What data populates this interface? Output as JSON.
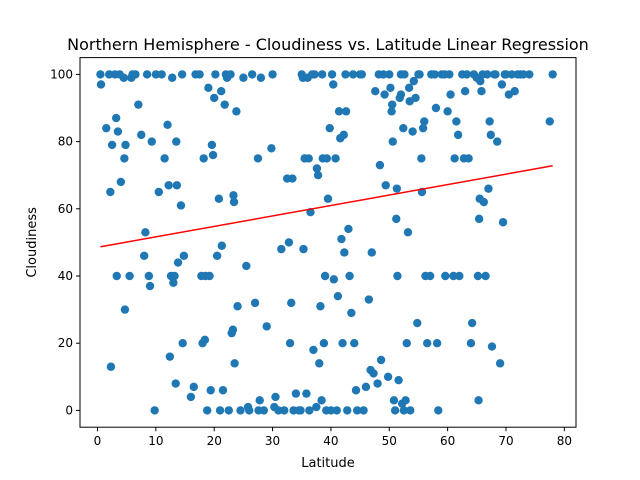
{
  "chart_data": {
    "type": "scatter",
    "title": "Northern Hemisphere - Cloudiness vs. Latitude Linear Regression",
    "xlabel": "Latitude",
    "ylabel": "Cloudiness",
    "xlim": [
      -3,
      82
    ],
    "ylim": [
      -5,
      105
    ],
    "xticks": [
      0,
      10,
      20,
      30,
      40,
      50,
      60,
      70,
      80
    ],
    "yticks": [
      0,
      20,
      40,
      60,
      80,
      100
    ],
    "grid": false,
    "colors": {
      "points": "#1f77b4",
      "regression": "#ff0000"
    },
    "regression": {
      "x": [
        0.5,
        78
      ],
      "y": [
        48.7,
        72.8
      ]
    },
    "points": [
      [
        0.5,
        100
      ],
      [
        0.6,
        97
      ],
      [
        1.5,
        84
      ],
      [
        2,
        100
      ],
      [
        2.2,
        65
      ],
      [
        2.3,
        13
      ],
      [
        2.5,
        79
      ],
      [
        3,
        100
      ],
      [
        3.2,
        87
      ],
      [
        3.3,
        40
      ],
      [
        3.5,
        83
      ],
      [
        3.8,
        100
      ],
      [
        4,
        68
      ],
      [
        4.5,
        99
      ],
      [
        4.6,
        75
      ],
      [
        4.7,
        30
      ],
      [
        4.8,
        79
      ],
      [
        5.5,
        40
      ],
      [
        5.8,
        99
      ],
      [
        6,
        100
      ],
      [
        6.5,
        100
      ],
      [
        7,
        91
      ],
      [
        7.5,
        82
      ],
      [
        8,
        46
      ],
      [
        8.2,
        53
      ],
      [
        8.5,
        100
      ],
      [
        8.8,
        40
      ],
      [
        9,
        37
      ],
      [
        9.3,
        80
      ],
      [
        9.8,
        0
      ],
      [
        10,
        100
      ],
      [
        10.5,
        65
      ],
      [
        11,
        100
      ],
      [
        11.5,
        75
      ],
      [
        12,
        85
      ],
      [
        12.2,
        67
      ],
      [
        12.4,
        16
      ],
      [
        12.6,
        40
      ],
      [
        12.8,
        99
      ],
      [
        13,
        38
      ],
      [
        13.2,
        40
      ],
      [
        13.4,
        8
      ],
      [
        13.5,
        80
      ],
      [
        13.6,
        67
      ],
      [
        13.8,
        44
      ],
      [
        14.3,
        61
      ],
      [
        14.5,
        100
      ],
      [
        14.8,
        46
      ],
      [
        14.6,
        20
      ],
      [
        16,
        4
      ],
      [
        16.5,
        7
      ],
      [
        16.8,
        100
      ],
      [
        17.5,
        100
      ],
      [
        17.8,
        40
      ],
      [
        18,
        20
      ],
      [
        18.2,
        75
      ],
      [
        18.4,
        21
      ],
      [
        18.5,
        40
      ],
      [
        18.8,
        0
      ],
      [
        19,
        96
      ],
      [
        19.2,
        40
      ],
      [
        19.4,
        6
      ],
      [
        19.6,
        79
      ],
      [
        19.8,
        76
      ],
      [
        20,
        93
      ],
      [
        20.2,
        100
      ],
      [
        20.5,
        46
      ],
      [
        20.8,
        63
      ],
      [
        21,
        0
      ],
      [
        21.2,
        95
      ],
      [
        21.3,
        49
      ],
      [
        21.5,
        6
      ],
      [
        21.8,
        91
      ],
      [
        22,
        100
      ],
      [
        22.2,
        99
      ],
      [
        22.5,
        0
      ],
      [
        22.8,
        100
      ],
      [
        23,
        23
      ],
      [
        23.2,
        24
      ],
      [
        23.3,
        64
      ],
      [
        23.4,
        62
      ],
      [
        23.5,
        14
      ],
      [
        23.8,
        89
      ],
      [
        24,
        31
      ],
      [
        24.5,
        0
      ],
      [
        25,
        99
      ],
      [
        25.5,
        43
      ],
      [
        25.8,
        1
      ],
      [
        26,
        0
      ],
      [
        26.5,
        100
      ],
      [
        27,
        32
      ],
      [
        27.5,
        75
      ],
      [
        27.6,
        0
      ],
      [
        27.8,
        3
      ],
      [
        28,
        99
      ],
      [
        28.5,
        0
      ],
      [
        29,
        25
      ],
      [
        29.8,
        78
      ],
      [
        30,
        100
      ],
      [
        30.3,
        1
      ],
      [
        30.5,
        4
      ],
      [
        31,
        0
      ],
      [
        31.5,
        48
      ],
      [
        32,
        0
      ],
      [
        32.5,
        69
      ],
      [
        32.8,
        50
      ],
      [
        33,
        20
      ],
      [
        33.2,
        32
      ],
      [
        33.4,
        69
      ],
      [
        33.6,
        0
      ],
      [
        34,
        5
      ],
      [
        34.5,
        0
      ],
      [
        34.8,
        0
      ],
      [
        35,
        100
      ],
      [
        35.2,
        99
      ],
      [
        35.3,
        48
      ],
      [
        35.5,
        75
      ],
      [
        35.8,
        5
      ],
      [
        36,
        99
      ],
      [
        36.2,
        75
      ],
      [
        36.3,
        0
      ],
      [
        36.5,
        59
      ],
      [
        36.8,
        100
      ],
      [
        37,
        18
      ],
      [
        37.2,
        100
      ],
      [
        37.5,
        1
      ],
      [
        37.6,
        72
      ],
      [
        37.8,
        70
      ],
      [
        38,
        14
      ],
      [
        38.2,
        31
      ],
      [
        38.4,
        3
      ],
      [
        38.5,
        100
      ],
      [
        38.6,
        75
      ],
      [
        38.8,
        20
      ],
      [
        39,
        40
      ],
      [
        39.2,
        0
      ],
      [
        39.3,
        75
      ],
      [
        39.5,
        63
      ],
      [
        39.8,
        84
      ],
      [
        40,
        0
      ],
      [
        40.2,
        100
      ],
      [
        40.4,
        97
      ],
      [
        40.5,
        39
      ],
      [
        40.8,
        75
      ],
      [
        41,
        0
      ],
      [
        41.2,
        34
      ],
      [
        41.4,
        89
      ],
      [
        41.6,
        81
      ],
      [
        41.8,
        51
      ],
      [
        42,
        20
      ],
      [
        42.2,
        82
      ],
      [
        42.3,
        47
      ],
      [
        42.5,
        100
      ],
      [
        42.6,
        89
      ],
      [
        42.8,
        0
      ],
      [
        43,
        54
      ],
      [
        43.2,
        40
      ],
      [
        43.5,
        29
      ],
      [
        43.8,
        100
      ],
      [
        44,
        20
      ],
      [
        44.3,
        6
      ],
      [
        44.5,
        0
      ],
      [
        45,
        100
      ],
      [
        45.3,
        100
      ],
      [
        45.6,
        0
      ],
      [
        46,
        7
      ],
      [
        46.5,
        33
      ],
      [
        46.8,
        12
      ],
      [
        47,
        47
      ],
      [
        47.3,
        11
      ],
      [
        47.6,
        95
      ],
      [
        48,
        8
      ],
      [
        48.2,
        100
      ],
      [
        48.4,
        73
      ],
      [
        48.6,
        15
      ],
      [
        49,
        100
      ],
      [
        49.2,
        94
      ],
      [
        49.4,
        67
      ],
      [
        49.8,
        10
      ],
      [
        50,
        100
      ],
      [
        50.2,
        96
      ],
      [
        50.4,
        89
      ],
      [
        50.5,
        91
      ],
      [
        50.6,
        80
      ],
      [
        50.8,
        3
      ],
      [
        51,
        0
      ],
      [
        51.2,
        57
      ],
      [
        51.3,
        66
      ],
      [
        51.4,
        40
      ],
      [
        51.6,
        9
      ],
      [
        51.8,
        93
      ],
      [
        52,
        100
      ],
      [
        52,
        94
      ],
      [
        52.2,
        2
      ],
      [
        52.4,
        84
      ],
      [
        52.5,
        0
      ],
      [
        52.6,
        100
      ],
      [
        52.8,
        3
      ],
      [
        53,
        20
      ],
      [
        53.2,
        53
      ],
      [
        53.4,
        96
      ],
      [
        53.5,
        92
      ],
      [
        53.6,
        0
      ],
      [
        54,
        83
      ],
      [
        54.2,
        98
      ],
      [
        54.5,
        93
      ],
      [
        54.8,
        26
      ],
      [
        55,
        100
      ],
      [
        55.2,
        100
      ],
      [
        55.5,
        75
      ],
      [
        55.6,
        65
      ],
      [
        55.8,
        84
      ],
      [
        56,
        86
      ],
      [
        56.2,
        40
      ],
      [
        56.5,
        20
      ],
      [
        57,
        40
      ],
      [
        57.2,
        100
      ],
      [
        57.8,
        100
      ],
      [
        58,
        90
      ],
      [
        58.2,
        20
      ],
      [
        58.4,
        0
      ],
      [
        59,
        100
      ],
      [
        59.5,
        100
      ],
      [
        59.6,
        40
      ],
      [
        60,
        89
      ],
      [
        60.3,
        100
      ],
      [
        60.5,
        94
      ],
      [
        61,
        40
      ],
      [
        61.2,
        75
      ],
      [
        61.5,
        86
      ],
      [
        61.8,
        82
      ],
      [
        62,
        40
      ],
      [
        62.5,
        100
      ],
      [
        62.8,
        75
      ],
      [
        63,
        95
      ],
      [
        63.3,
        100
      ],
      [
        63.6,
        75
      ],
      [
        64,
        20
      ],
      [
        64.2,
        26
      ],
      [
        64.5,
        100
      ],
      [
        65,
        99
      ],
      [
        65.2,
        40
      ],
      [
        65.3,
        3
      ],
      [
        65.4,
        57
      ],
      [
        65.5,
        63
      ],
      [
        65.6,
        98
      ],
      [
        65.8,
        95
      ],
      [
        66,
        100
      ],
      [
        66.2,
        62
      ],
      [
        66.5,
        40
      ],
      [
        66.8,
        100
      ],
      [
        67,
        66
      ],
      [
        67.2,
        86
      ],
      [
        67.4,
        82
      ],
      [
        67.6,
        19
      ],
      [
        68,
        100
      ],
      [
        68.2,
        100
      ],
      [
        68.5,
        80
      ],
      [
        69,
        14
      ],
      [
        69.3,
        97
      ],
      [
        69.5,
        56
      ],
      [
        69.8,
        100
      ],
      [
        70,
        100
      ],
      [
        70.5,
        94
      ],
      [
        71,
        100
      ],
      [
        71.5,
        95
      ],
      [
        72,
        100
      ],
      [
        72.5,
        100
      ],
      [
        73,
        100
      ],
      [
        74,
        100
      ],
      [
        77.5,
        86
      ],
      [
        78,
        100
      ]
    ]
  }
}
